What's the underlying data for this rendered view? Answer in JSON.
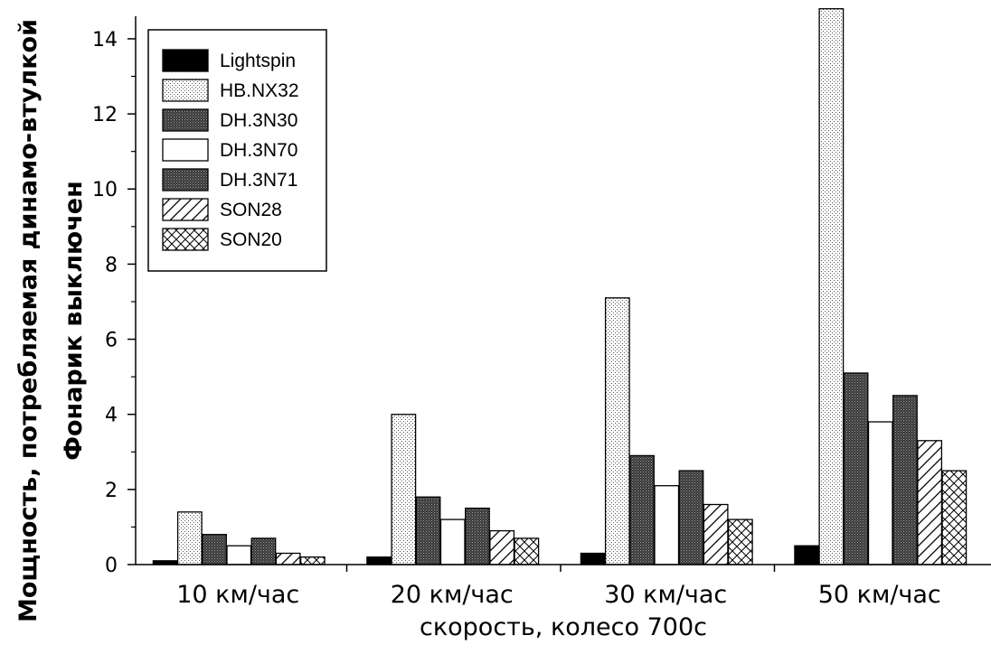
{
  "chart_data": {
    "type": "bar",
    "ylabel_line1": "Мощность, потребляемая динамо-втулкой",
    "ylabel_line2": "Фонарик выключен",
    "xlabel": "скорость, колесо 700с",
    "categories": [
      "10 км/час",
      "20 км/час",
      "30 км/час",
      "50 км/час"
    ],
    "ylim": [
      0,
      14.6
    ],
    "yticks": [
      "0",
      "2",
      "4",
      "6",
      "8",
      "10",
      "12",
      "14"
    ],
    "ytick_values": [
      0,
      2,
      4,
      6,
      8,
      10,
      12,
      14
    ],
    "legend_position": "top-left",
    "grid": false,
    "series": [
      {
        "name": "Lightspin",
        "pattern": "solid-black",
        "values": [
          0.1,
          0.2,
          0.3,
          0.5
        ]
      },
      {
        "name": "HB.NX32",
        "pattern": "light-dots",
        "values": [
          1.4,
          4.0,
          7.1,
          14.8
        ]
      },
      {
        "name": "DH.3N30",
        "pattern": "dark-dots",
        "values": [
          0.8,
          1.8,
          2.9,
          5.1
        ]
      },
      {
        "name": "DH.3N70",
        "pattern": "white",
        "values": [
          0.5,
          1.2,
          2.1,
          3.8
        ]
      },
      {
        "name": "DH.3N71",
        "pattern": "dark-dots",
        "values": [
          0.7,
          1.5,
          2.5,
          4.5
        ]
      },
      {
        "name": "SON28",
        "pattern": "diagonal-lines",
        "values": [
          0.3,
          0.9,
          1.6,
          3.3
        ]
      },
      {
        "name": "SON20",
        "pattern": "crosshatch",
        "values": [
          0.2,
          0.7,
          1.2,
          2.5
        ]
      }
    ]
  }
}
